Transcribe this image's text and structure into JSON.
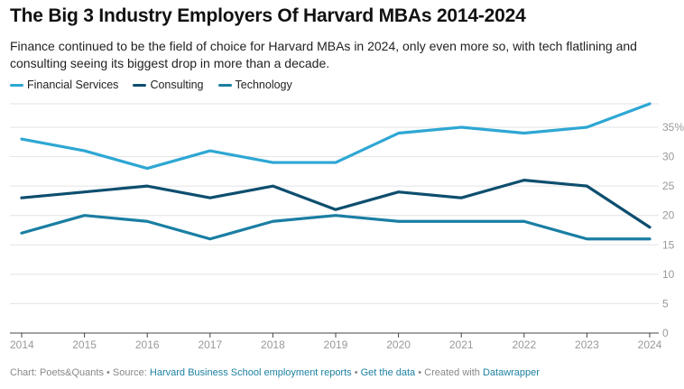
{
  "header": {
    "title": "The Big 3 Industry Employers Of Harvard MBAs 2014-2024",
    "subtitle": "Finance continued to be the field of choice for Harvard MBAs in 2024, only even more so, with tech flatlining and consulting seeing its biggest drop in more than a decade."
  },
  "footer": {
    "chart_credit": "Chart: Poets&Quants",
    "sep1": " • ",
    "source_prefix": "Source: ",
    "source_link": "Harvard Business School employment reports",
    "sep2": " • ",
    "get_data": "Get the data",
    "sep3": " • ",
    "created_prefix": "Created with ",
    "created_link": "Datawrapper"
  },
  "chart_data": {
    "type": "line",
    "title": "The Big 3 Industry Employers Of Harvard MBAs 2014-2024",
    "x": [
      "2014",
      "2015",
      "2016",
      "2017",
      "2018",
      "2019",
      "2020",
      "2021",
      "2022",
      "2023",
      "2024"
    ],
    "y_ticks": [
      "35%",
      "30",
      "25",
      "20",
      "15",
      "10",
      "5",
      "0"
    ],
    "y_tick_values": [
      35,
      30,
      25,
      20,
      15,
      10,
      5,
      0
    ],
    "ylim": [
      0,
      35
    ],
    "grid": true,
    "legend_position": "top-left",
    "series": [
      {
        "name": "Financial Services",
        "color": "#2ea7d3",
        "values": [
          33,
          31,
          28,
          31,
          29,
          29,
          34,
          35,
          34,
          35,
          39
        ]
      },
      {
        "name": "Consulting",
        "color": "#0d4e6e",
        "values": [
          23,
          24,
          25,
          23,
          25,
          21,
          24,
          23,
          26,
          25,
          18
        ]
      },
      {
        "name": "Technology",
        "color": "#1a7ea3",
        "values": [
          17,
          20,
          19,
          16,
          19,
          20,
          19,
          19,
          19,
          16,
          16
        ]
      }
    ]
  }
}
